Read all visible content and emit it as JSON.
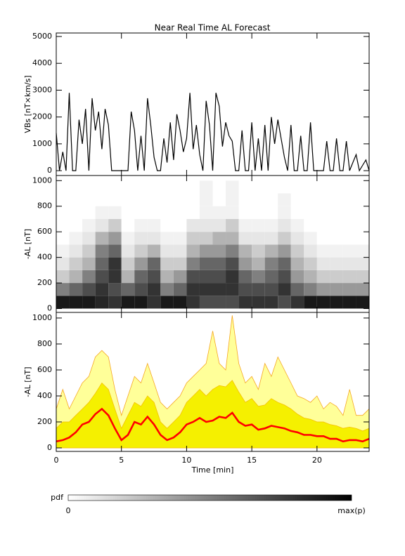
{
  "chart_data": [
    {
      "type": "line",
      "title": "Near Real Time AL Forecast",
      "ylabel": "VBs [nT×km/s]",
      "xlim": [
        0,
        24
      ],
      "ylim": [
        -180,
        5130
      ],
      "yticks": [
        0,
        1000,
        2000,
        3000,
        4000,
        5000
      ],
      "color": "#000000",
      "x": [
        0,
        0.25,
        0.5,
        0.75,
        1,
        1.25,
        1.5,
        1.75,
        2,
        2.25,
        2.5,
        2.75,
        3,
        3.25,
        3.5,
        3.75,
        4,
        4.25,
        4.5,
        4.75,
        5,
        5.25,
        5.5,
        5.75,
        6,
        6.25,
        6.5,
        6.75,
        7,
        7.25,
        7.5,
        7.75,
        8,
        8.25,
        8.5,
        8.75,
        9,
        9.25,
        9.5,
        9.75,
        10,
        10.25,
        10.5,
        10.75,
        11,
        11.25,
        11.5,
        11.75,
        12,
        12.25,
        12.5,
        12.75,
        13,
        13.25,
        13.5,
        13.75,
        14,
        14.25,
        14.5,
        14.75,
        15,
        15.25,
        15.5,
        15.75,
        16,
        16.25,
        16.5,
        16.75,
        17,
        17.25,
        17.5,
        17.75,
        18,
        18.25,
        18.5,
        18.75,
        19,
        19.25,
        19.5,
        19.75,
        20,
        20.25,
        20.5,
        20.75,
        21,
        21.25,
        21.5,
        21.75,
        22,
        22.25,
        22.5,
        22.75,
        23,
        23.25,
        23.5,
        23.75,
        24
      ],
      "values": [
        1400,
        0,
        700,
        0,
        2900,
        0,
        0,
        1900,
        1000,
        2300,
        0,
        2700,
        1500,
        2200,
        800,
        2300,
        1700,
        0,
        0,
        0,
        0,
        0,
        0,
        2200,
        1500,
        0,
        1300,
        0,
        2700,
        1700,
        500,
        0,
        0,
        1200,
        300,
        1800,
        400,
        2100,
        1500,
        700,
        1200,
        2900,
        800,
        1700,
        600,
        0,
        2600,
        1700,
        0,
        2900,
        2400,
        900,
        1800,
        1300,
        1100,
        0,
        0,
        1500,
        0,
        0,
        1800,
        0,
        1200,
        0,
        1700,
        0,
        2000,
        1000,
        1900,
        1200,
        500,
        0,
        1700,
        0,
        0,
        1300,
        0,
        0,
        1800,
        0,
        0,
        0,
        0,
        1100,
        0,
        0,
        1200,
        0,
        0,
        1100,
        0,
        300,
        600,
        0,
        200,
        400,
        0
      ]
    },
    {
      "type": "heatmap",
      "ylabel": "-AL [nT]",
      "xlim": [
        0,
        24
      ],
      "ylim": [
        -30,
        1040
      ],
      "yticks": [
        0,
        200,
        400,
        600,
        800,
        1000
      ],
      "x_bins": [
        0,
        1,
        2,
        3,
        4,
        5,
        6,
        7,
        8,
        9,
        10,
        11,
        12,
        13,
        14,
        15,
        16,
        17,
        18,
        19,
        20,
        21,
        22,
        23,
        24
      ],
      "y_bins": [
        0,
        100,
        200,
        300,
        400,
        500,
        600,
        700,
        800,
        900,
        1000
      ],
      "z": [
        [
          0.9,
          0.9,
          0.9,
          0.85,
          0.8,
          0.9,
          0.9,
          0.8,
          0.9,
          0.9,
          0.8,
          0.7,
          0.7,
          0.7,
          0.8,
          0.8,
          0.8,
          0.7,
          0.8,
          0.9,
          0.9,
          0.9,
          0.9,
          0.9
        ],
        [
          0.5,
          0.6,
          0.7,
          0.8,
          0.7,
          0.6,
          0.7,
          0.8,
          0.5,
          0.6,
          0.8,
          0.8,
          0.8,
          0.8,
          0.7,
          0.7,
          0.7,
          0.8,
          0.6,
          0.5,
          0.4,
          0.4,
          0.4,
          0.4
        ],
        [
          0.2,
          0.3,
          0.5,
          0.7,
          0.8,
          0.3,
          0.6,
          0.7,
          0.3,
          0.4,
          0.7,
          0.7,
          0.7,
          0.8,
          0.6,
          0.5,
          0.6,
          0.7,
          0.4,
          0.3,
          0.2,
          0.2,
          0.2,
          0.2
        ],
        [
          0.1,
          0.2,
          0.3,
          0.6,
          0.8,
          0.2,
          0.4,
          0.6,
          0.2,
          0.2,
          0.5,
          0.6,
          0.6,
          0.7,
          0.4,
          0.3,
          0.5,
          0.6,
          0.3,
          0.2,
          0.1,
          0.1,
          0.1,
          0.1
        ],
        [
          0.05,
          0.1,
          0.2,
          0.5,
          0.6,
          0.1,
          0.2,
          0.3,
          0.1,
          0.1,
          0.3,
          0.4,
          0.4,
          0.5,
          0.3,
          0.2,
          0.3,
          0.4,
          0.2,
          0.1,
          0.05,
          0.05,
          0.05,
          0.05
        ],
        [
          0,
          0.05,
          0.1,
          0.3,
          0.4,
          0.05,
          0.1,
          0.1,
          0.05,
          0.05,
          0.2,
          0.2,
          0.3,
          0.3,
          0.1,
          0.1,
          0.1,
          0.2,
          0.1,
          0.05,
          0,
          0,
          0,
          0
        ],
        [
          0,
          0,
          0.05,
          0.1,
          0.2,
          0,
          0.05,
          0.05,
          0,
          0,
          0.1,
          0.1,
          0.1,
          0.2,
          0.05,
          0.05,
          0.05,
          0.1,
          0.05,
          0,
          0,
          0,
          0,
          0
        ],
        [
          0,
          0,
          0,
          0.05,
          0.05,
          0,
          0,
          0,
          0,
          0,
          0,
          0.05,
          0.05,
          0.05,
          0,
          0,
          0,
          0.05,
          0,
          0,
          0,
          0,
          0,
          0
        ],
        [
          0,
          0,
          0,
          0,
          0,
          0,
          0,
          0,
          0,
          0,
          0,
          0.05,
          0,
          0.05,
          0,
          0,
          0,
          0.05,
          0,
          0,
          0,
          0,
          0,
          0
        ],
        [
          0,
          0,
          0,
          0,
          0,
          0,
          0,
          0,
          0,
          0,
          0,
          0.05,
          0,
          0.05,
          0,
          0,
          0,
          0,
          0,
          0,
          0,
          0,
          0,
          0
        ]
      ]
    },
    {
      "type": "area",
      "ylabel": "-AL [nT]",
      "xlabel": "Time [min]",
      "xlim": [
        0,
        24
      ],
      "ylim": [
        -27,
        1043
      ],
      "yticks": [
        0,
        200,
        400,
        600,
        800,
        1000
      ],
      "xticks": [
        0,
        5,
        10,
        15,
        20
      ],
      "x": [
        0,
        0.5,
        1,
        1.5,
        2,
        2.5,
        3,
        3.5,
        4,
        4.5,
        5,
        5.5,
        6,
        6.5,
        7,
        7.5,
        8,
        8.5,
        9,
        9.5,
        10,
        10.5,
        11,
        11.5,
        12,
        12.5,
        13,
        13.5,
        14,
        14.5,
        15,
        15.5,
        16,
        16.5,
        17,
        17.5,
        18,
        18.5,
        19,
        19.5,
        20,
        20.5,
        21,
        21.5,
        22,
        22.5,
        23,
        23.5,
        24
      ],
      "series": [
        {
          "color": "#f5a623",
          "fill": "#ffff99",
          "values": [
            300,
            450,
            300,
            400,
            500,
            550,
            700,
            750,
            700,
            450,
            250,
            400,
            550,
            500,
            650,
            500,
            350,
            300,
            350,
            400,
            500,
            550,
            600,
            650,
            900,
            650,
            600,
            1020,
            650,
            500,
            550,
            450,
            650,
            550,
            700,
            600,
            500,
            400,
            380,
            350,
            400,
            300,
            350,
            320,
            250,
            450,
            250,
            250,
            300
          ]
        },
        {
          "color": "#f5c000",
          "fill": "#f5f000",
          "values": [
            150,
            200,
            200,
            250,
            300,
            350,
            420,
            500,
            450,
            300,
            150,
            250,
            350,
            320,
            400,
            350,
            200,
            150,
            200,
            250,
            350,
            400,
            450,
            400,
            450,
            480,
            470,
            520,
            430,
            350,
            380,
            320,
            330,
            380,
            350,
            330,
            300,
            260,
            230,
            220,
            200,
            200,
            180,
            170,
            150,
            160,
            150,
            130,
            150
          ]
        },
        {
          "color": "#ff0000",
          "values": [
            50,
            60,
            80,
            120,
            180,
            200,
            260,
            300,
            250,
            150,
            60,
            100,
            200,
            180,
            240,
            180,
            100,
            60,
            80,
            120,
            180,
            200,
            230,
            200,
            210,
            240,
            230,
            270,
            200,
            170,
            180,
            140,
            150,
            170,
            160,
            150,
            130,
            120,
            100,
            100,
            90,
            90,
            70,
            70,
            50,
            60,
            60,
            50,
            70
          ]
        }
      ]
    }
  ],
  "colorbar": {
    "label": "pdf",
    "min_label": "0",
    "max_label": "max(p)"
  }
}
